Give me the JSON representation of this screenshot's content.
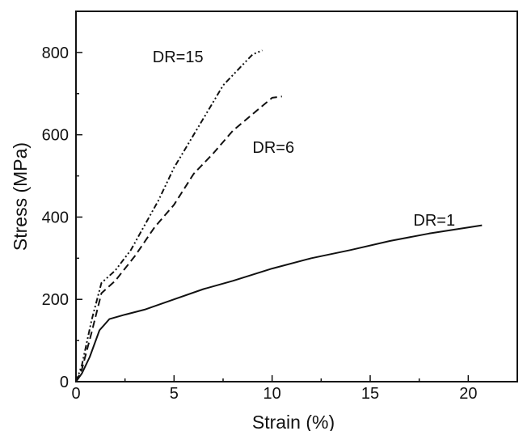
{
  "chart_data": {
    "type": "line",
    "xlabel": "Strain (%)",
    "ylabel": "Stress (MPa)",
    "xlim": [
      0,
      22.5
    ],
    "ylim": [
      0,
      900
    ],
    "xticks": [
      0,
      5,
      10,
      15,
      20
    ],
    "yticks": [
      0,
      200,
      400,
      600,
      800
    ],
    "xtick_labels": [
      "0",
      "5",
      "10",
      "15",
      "20"
    ],
    "ytick_labels": [
      "0",
      "200",
      "400",
      "600",
      "800"
    ],
    "grid": false,
    "legend": "none",
    "series": [
      {
        "name": "DR=1",
        "style": "solid",
        "color": "#111111",
        "x": [
          0,
          0.3,
          0.7,
          1.2,
          1.7,
          2.5,
          3.5,
          5,
          6.5,
          8,
          10,
          12,
          14,
          16,
          18,
          20,
          20.7
        ],
        "y": [
          0,
          20,
          60,
          125,
          152,
          163,
          175,
          200,
          225,
          245,
          275,
          300,
          320,
          342,
          360,
          375,
          380
        ]
      },
      {
        "name": "DR=6",
        "style": "dashed",
        "color": "#111111",
        "x": [
          0,
          0.3,
          0.8,
          1.3,
          2,
          3,
          4,
          5,
          6,
          7,
          8,
          9,
          10,
          10.5
        ],
        "y": [
          0,
          30,
          120,
          215,
          245,
          305,
          375,
          430,
          505,
          555,
          610,
          650,
          690,
          693
        ]
      },
      {
        "name": "DR=15",
        "style": "dash-dot-dot",
        "color": "#111111",
        "x": [
          0,
          0.3,
          0.8,
          1.3,
          2,
          2.8,
          3.5,
          4.2,
          5,
          6,
          7,
          7.5,
          8.3,
          9,
          9.5
        ],
        "y": [
          0,
          40,
          150,
          240,
          270,
          320,
          380,
          440,
          520,
          600,
          680,
          720,
          760,
          795,
          805
        ]
      }
    ],
    "annotations": [
      {
        "text": "DR=15",
        "series": 2,
        "x": 5.2,
        "y": 790,
        "anchor": "middle"
      },
      {
        "text": "DR=6",
        "series": 1,
        "x": 9.0,
        "y": 570,
        "anchor": "start"
      },
      {
        "text": "DR=1",
        "series": 0,
        "x": 17.2,
        "y": 393,
        "anchor": "start"
      }
    ]
  }
}
